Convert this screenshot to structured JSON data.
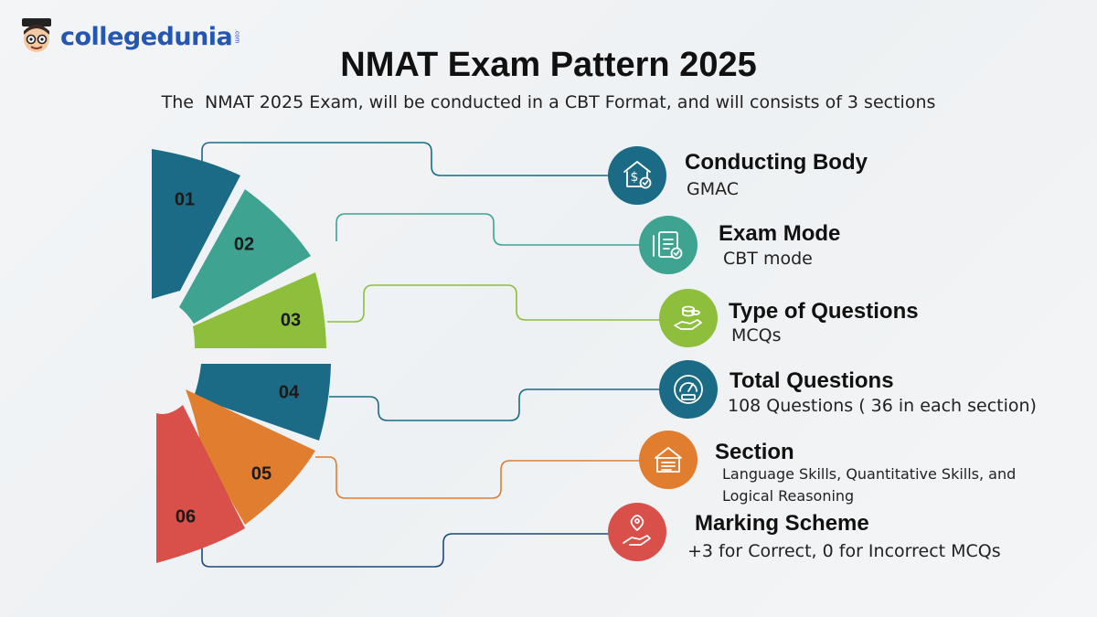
{
  "brand": {
    "name": "collegedunia",
    "suffix": ".com"
  },
  "title": "NMAT Exam Pattern 2025",
  "subtitle": "The  NMAT 2025 Exam, will be conducted in a CBT Format, and will consists of 3 sections",
  "colors": {
    "petrol": "#1b6b86",
    "teal": "#3fa391",
    "lime": "#8dbe3c",
    "orange": "#e17d2f",
    "red": "#d94f4a"
  },
  "items": [
    {
      "number": "01",
      "title": "Conducting Body",
      "value": "GMAC",
      "color": "#1b6b86",
      "icon": "bank-dollar-icon"
    },
    {
      "number": "02",
      "title": "Exam Mode",
      "value": "CBT mode",
      "color": "#3fa391",
      "icon": "document-check-icon"
    },
    {
      "number": "03",
      "title": "Type of Questions",
      "value": "MCQs",
      "color": "#8dbe3c",
      "icon": "hand-coins-icon"
    },
    {
      "number": "04",
      "title": "Total Questions",
      "value": "108 Questions ( 36 in each section)",
      "color": "#1b6b86",
      "icon": "gauge-icon"
    },
    {
      "number": "05",
      "title": "Section",
      "value": "Language Skills, Quantitative Skills, and Logical Reasoning",
      "color": "#e17d2f",
      "icon": "building-list-icon"
    },
    {
      "number": "06",
      "title": "Marking Scheme",
      "value": "+3 for Correct, 0 for Incorrect MCQs",
      "color": "#d94f4a",
      "icon": "hand-pin-icon"
    }
  ]
}
